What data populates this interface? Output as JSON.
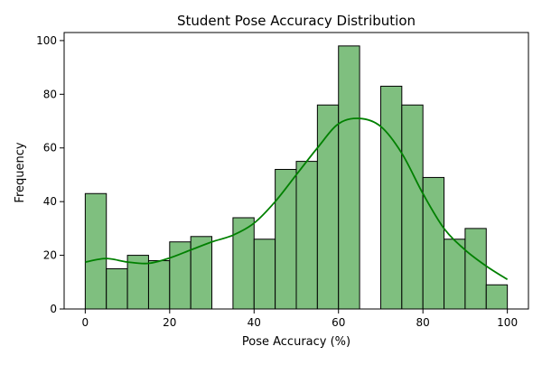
{
  "chart_data": {
    "type": "bar",
    "title": "Student Pose Accuracy Distribution",
    "xlabel": "Pose Accuracy (%)",
    "ylabel": "Frequency",
    "xlim": [
      -5,
      105
    ],
    "ylim": [
      0,
      103
    ],
    "xticks": [
      0,
      20,
      40,
      60,
      80,
      100
    ],
    "yticks": [
      0,
      20,
      40,
      60,
      80,
      100
    ],
    "bin_width": 5,
    "bins": [
      {
        "start": 0,
        "end": 5,
        "count": 43
      },
      {
        "start": 5,
        "end": 10,
        "count": 15
      },
      {
        "start": 10,
        "end": 15,
        "count": 20
      },
      {
        "start": 15,
        "end": 20,
        "count": 18
      },
      {
        "start": 20,
        "end": 25,
        "count": 25
      },
      {
        "start": 25,
        "end": 30,
        "count": 27
      },
      {
        "start": 30,
        "end": 35,
        "count": 0
      },
      {
        "start": 35,
        "end": 40,
        "count": 34
      },
      {
        "start": 40,
        "end": 45,
        "count": 26
      },
      {
        "start": 45,
        "end": 50,
        "count": 52
      },
      {
        "start": 50,
        "end": 55,
        "count": 55
      },
      {
        "start": 55,
        "end": 60,
        "count": 76
      },
      {
        "start": 60,
        "end": 65,
        "count": 98
      },
      {
        "start": 65,
        "end": 70,
        "count": 0
      },
      {
        "start": 70,
        "end": 75,
        "count": 83
      },
      {
        "start": 75,
        "end": 80,
        "count": 76
      },
      {
        "start": 80,
        "end": 85,
        "count": 49
      },
      {
        "start": 85,
        "end": 90,
        "count": 26
      },
      {
        "start": 90,
        "end": 95,
        "count": 30
      },
      {
        "start": 95,
        "end": 100,
        "count": 9
      }
    ],
    "kde": {
      "x": [
        0,
        5,
        10,
        15,
        20,
        25,
        30,
        35,
        40,
        45,
        50,
        55,
        60,
        65,
        70,
        75,
        80,
        85,
        90,
        95,
        100
      ],
      "y": [
        17.5,
        18.8,
        17.5,
        17,
        19,
        22,
        25,
        27.5,
        32,
        40,
        50,
        60,
        69,
        71,
        68,
        58,
        43,
        30,
        22,
        16,
        11
      ]
    },
    "grid": false,
    "legend": "none",
    "colors": {
      "bar_fill": "#7fbf7f",
      "bar_edge": "#000000",
      "kde_line": "#008000"
    }
  }
}
